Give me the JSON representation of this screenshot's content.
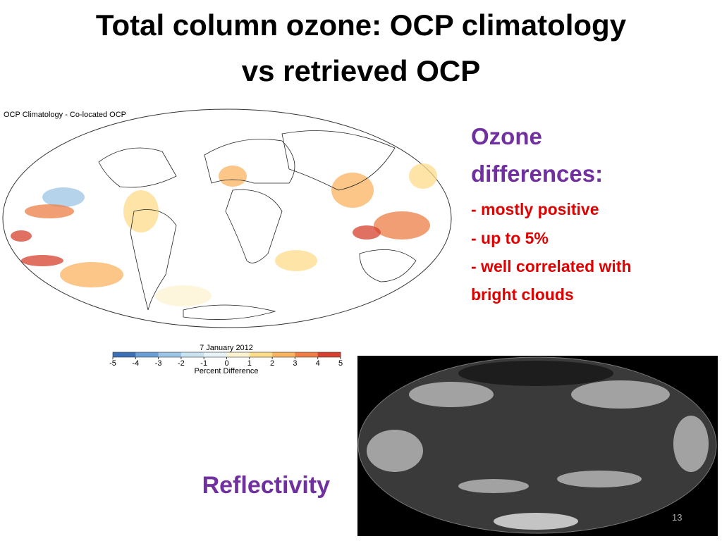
{
  "header": {
    "title_lines": [
      "Total column ozone: OCP climatology",
      "vs retrieved OCP"
    ]
  },
  "ozone_map": {
    "title": "OCP Climatology - Co-located OCP",
    "date": "7 January 2012",
    "colorbar": {
      "ticks": [
        -5,
        -4,
        -3,
        -2,
        -1,
        0,
        1,
        2,
        3,
        4,
        5
      ],
      "colors": [
        "#3b6fb6",
        "#6a9fd4",
        "#9cc4e4",
        "#c9e2f0",
        "#e8f3f8",
        "#fdf3d0",
        "#fddc8a",
        "#f9b35f",
        "#ee7e45",
        "#d6402e"
      ],
      "label": "Percent Difference"
    }
  },
  "notes": {
    "heading_lines": [
      "Ozone",
      "differences:"
    ],
    "bullets": [
      "- mostly positive",
      "- up to 5%",
      "- well correlated with",
      "bright clouds"
    ]
  },
  "reflectivity": {
    "label": "Reflectivity"
  },
  "page_number": "13"
}
